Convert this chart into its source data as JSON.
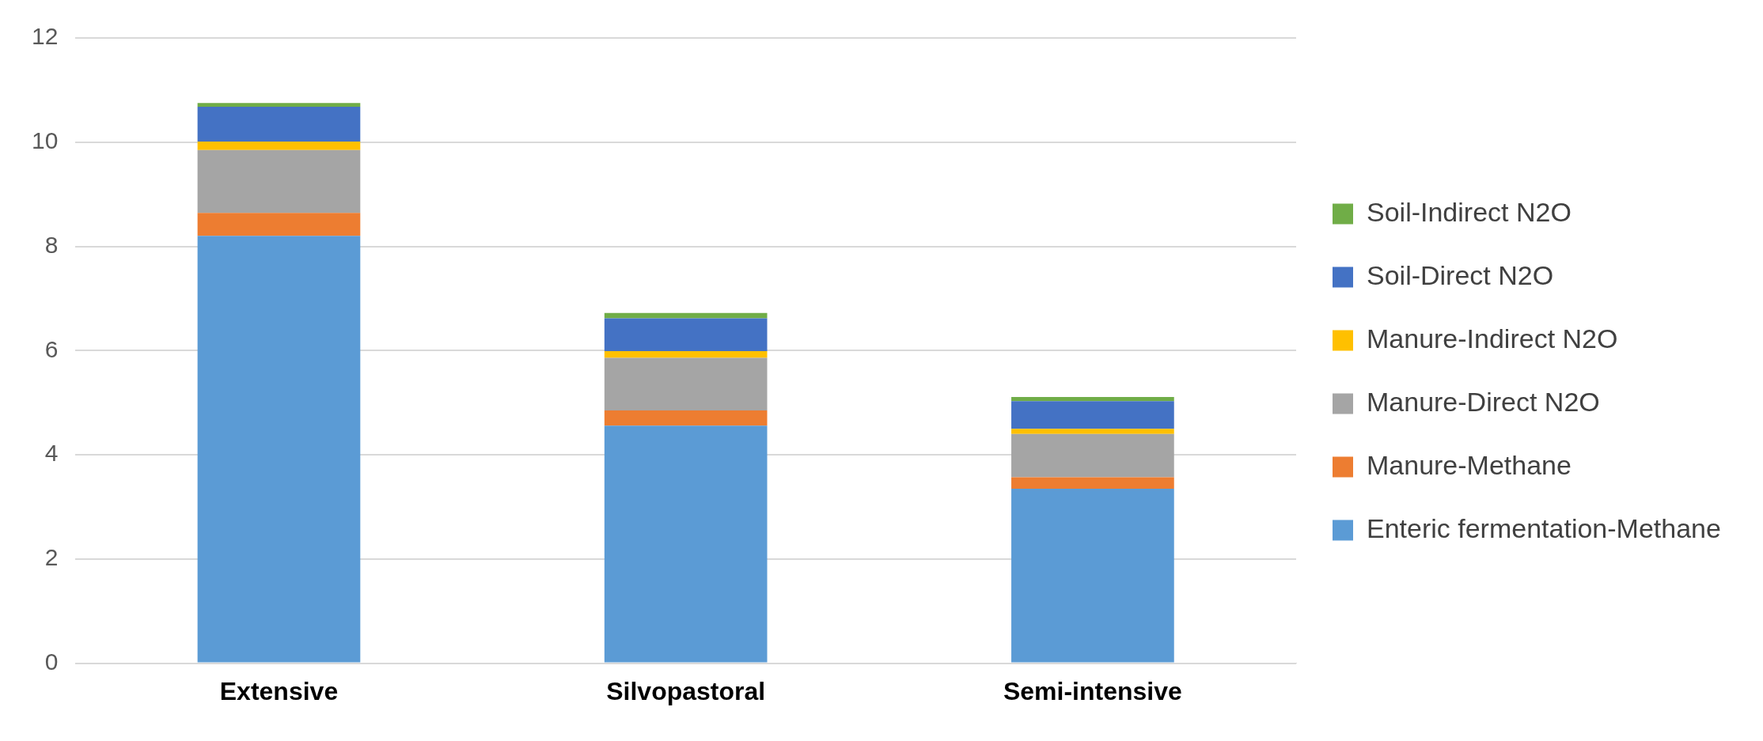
{
  "chart_data": {
    "type": "bar",
    "stacked": true,
    "categories": [
      "Extensive",
      "Silvopastoral",
      "Semi-intensive"
    ],
    "series": [
      {
        "name": "Enteric fermentation-Methane",
        "color": "#5b9bd5",
        "values": [
          8.2,
          4.56,
          3.35
        ]
      },
      {
        "name": "Manure-Methane",
        "color": "#ed7d31",
        "values": [
          0.44,
          0.29,
          0.22
        ]
      },
      {
        "name": "Manure-Direct N2O",
        "color": "#a5a5a5",
        "values": [
          1.21,
          1.01,
          0.83
        ]
      },
      {
        "name": "Manure-Indirect N2O",
        "color": "#ffc000",
        "values": [
          0.16,
          0.13,
          0.1
        ]
      },
      {
        "name": "Soil-Direct N2O",
        "color": "#4472c4",
        "values": [
          0.67,
          0.63,
          0.53
        ]
      },
      {
        "name": "Soil-Indirect N2O",
        "color": "#70ad47",
        "values": [
          0.07,
          0.1,
          0.08
        ]
      }
    ],
    "ylim": [
      0,
      12
    ],
    "yticks": [
      0,
      2,
      4,
      6,
      8,
      10,
      12
    ],
    "grid": "y",
    "legend": "right"
  }
}
